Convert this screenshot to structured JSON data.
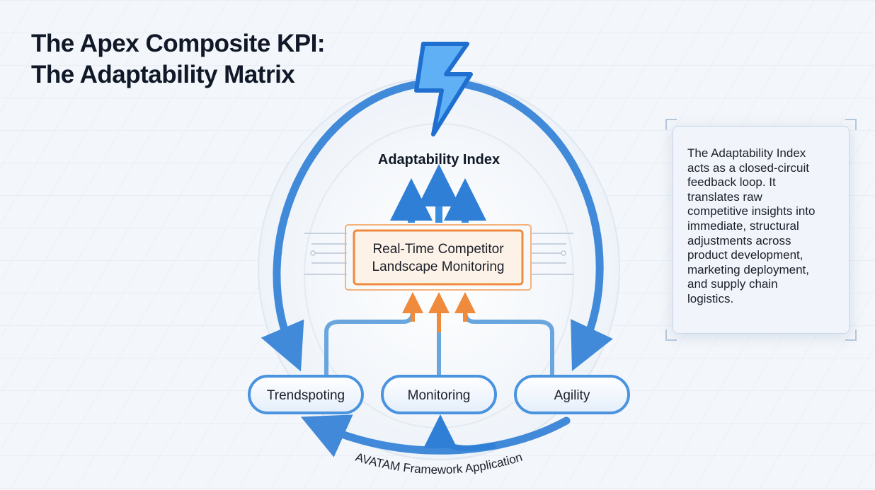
{
  "title": {
    "line1": "The Apex Composite KPI:",
    "line2": "The Adaptability Matrix"
  },
  "diagram": {
    "top_label": "Adaptability Index",
    "top_icon": "lightning-bolt-icon",
    "center_box": {
      "line1": "Real-Time Competitor",
      "line2": "Landscape Monitoring"
    },
    "pillars": [
      {
        "label": "Trendspoting"
      },
      {
        "label": "Monitoring"
      },
      {
        "label": "Agility"
      }
    ],
    "loop_label": "AVATAM Framework Application"
  },
  "note": {
    "lines": [
      "The Adaptability Index",
      "acts as a closed-circuit",
      "feedback loop. It",
      "translates raw",
      "competitive insights into",
      "immediate, structural",
      "adjustments across",
      "product development,",
      "marketing deployment,",
      "and supply chain",
      "logistics."
    ]
  },
  "colors": {
    "blue": "#2f7fd6",
    "orange": "#f08a3c",
    "title": "#111827"
  }
}
